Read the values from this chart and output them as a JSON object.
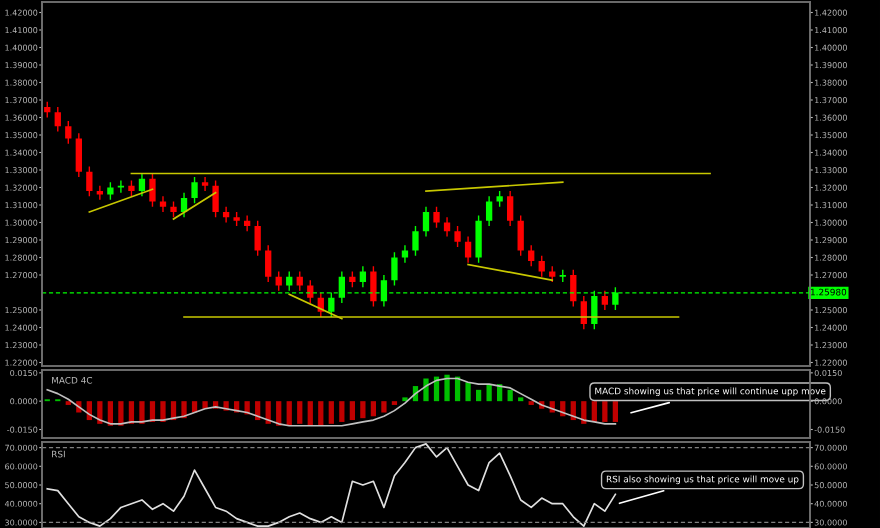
{
  "chart_data": [
    {
      "type": "candlestick",
      "tick_labels": "y",
      "categories": [
        null,
        null,
        null,
        null,
        null,
        null,
        null,
        null,
        null,
        null,
        null,
        null,
        null,
        null,
        null,
        null,
        null,
        null,
        null,
        null,
        null,
        null,
        null,
        null,
        null,
        null,
        null,
        null,
        null,
        null,
        null,
        null,
        null,
        null,
        null,
        null,
        null,
        null,
        null,
        null,
        null,
        null,
        null,
        null,
        null,
        null,
        null,
        null,
        null,
        null,
        null,
        null,
        null,
        null,
        null,
        null,
        null,
        null,
        null,
        null,
        null,
        null,
        null,
        null,
        null,
        null,
        null,
        null,
        null,
        null,
        null,
        null,
        null
      ],
      "ohlc": [
        [
          1.366,
          1.369,
          1.36,
          1.363
        ],
        [
          1.363,
          1.366,
          1.352,
          1.355
        ],
        [
          1.355,
          1.358,
          1.345,
          1.348
        ],
        [
          1.348,
          1.351,
          1.326,
          1.329
        ],
        [
          1.329,
          1.332,
          1.315,
          1.318
        ],
        [
          1.318,
          1.321,
          1.313,
          1.316
        ],
        [
          1.316,
          1.323,
          1.313,
          1.32
        ],
        [
          1.32,
          1.324,
          1.317,
          1.321
        ],
        [
          1.321,
          1.324,
          1.315,
          1.318
        ],
        [
          1.318,
          1.328,
          1.315,
          1.325
        ],
        [
          1.325,
          1.328,
          1.309,
          1.312
        ],
        [
          1.312,
          1.315,
          1.306,
          1.309
        ],
        [
          1.309,
          1.312,
          1.303,
          1.306
        ],
        [
          1.306,
          1.317,
          1.303,
          1.314
        ],
        [
          1.314,
          1.326,
          1.311,
          1.323
        ],
        [
          1.323,
          1.326,
          1.318,
          1.321
        ],
        [
          1.321,
          1.324,
          1.303,
          1.306
        ],
        [
          1.306,
          1.309,
          1.3,
          1.303
        ],
        [
          1.303,
          1.306,
          1.298,
          1.301
        ],
        [
          1.301,
          1.304,
          1.295,
          1.298
        ],
        [
          1.298,
          1.301,
          1.281,
          1.284
        ],
        [
          1.284,
          1.287,
          1.266,
          1.269
        ],
        [
          1.269,
          1.272,
          1.261,
          1.264
        ],
        [
          1.264,
          1.272,
          1.261,
          1.269
        ],
        [
          1.269,
          1.272,
          1.261,
          1.264
        ],
        [
          1.264,
          1.267,
          1.254,
          1.257
        ],
        [
          1.257,
          1.26,
          1.246,
          1.249
        ],
        [
          1.249,
          1.26,
          1.246,
          1.257
        ],
        [
          1.257,
          1.272,
          1.254,
          1.269
        ],
        [
          1.269,
          1.272,
          1.263,
          1.266
        ],
        [
          1.266,
          1.275,
          1.263,
          1.272
        ],
        [
          1.272,
          1.275,
          1.252,
          1.255
        ],
        [
          1.255,
          1.27,
          1.252,
          1.267
        ],
        [
          1.267,
          1.283,
          1.264,
          1.28
        ],
        [
          1.28,
          1.287,
          1.277,
          1.284
        ],
        [
          1.284,
          1.298,
          1.281,
          1.295
        ],
        [
          1.295,
          1.309,
          1.292,
          1.306
        ],
        [
          1.306,
          1.309,
          1.297,
          1.3
        ],
        [
          1.3,
          1.303,
          1.292,
          1.295
        ],
        [
          1.295,
          1.298,
          1.286,
          1.289
        ],
        [
          1.289,
          1.292,
          1.277,
          1.28
        ],
        [
          1.28,
          1.304,
          1.277,
          1.301
        ],
        [
          1.301,
          1.315,
          1.298,
          1.312
        ],
        [
          1.312,
          1.318,
          1.309,
          1.315
        ],
        [
          1.315,
          1.318,
          1.298,
          1.301
        ],
        [
          1.301,
          1.304,
          1.281,
          1.284
        ],
        [
          1.284,
          1.287,
          1.275,
          1.278
        ],
        [
          1.278,
          1.281,
          1.269,
          1.272
        ],
        [
          1.272,
          1.275,
          1.266,
          1.269
        ],
        [
          1.269,
          1.273,
          1.266,
          1.27
        ],
        [
          1.27,
          1.273,
          1.252,
          1.255
        ],
        [
          1.255,
          1.258,
          1.239,
          1.242
        ],
        [
          1.242,
          1.261,
          1.239,
          1.258
        ],
        [
          1.258,
          1.261,
          1.25,
          1.253
        ],
        [
          1.253,
          1.263,
          1.25,
          1.26
        ],
        null,
        null,
        null,
        null,
        null,
        null,
        null,
        null,
        null,
        null,
        null,
        null,
        null,
        null,
        null,
        null,
        null,
        null
      ],
      "colors": [
        "#ff0000",
        "#ff0000",
        "#ff0000",
        "#ff0000",
        "#ff0000",
        "#ff0000",
        "#00ff00",
        "#00ff00",
        "#ff0000",
        "#00ff00",
        "#ff0000",
        "#ff0000",
        "#ff0000",
        "#00ff00",
        "#00ff00",
        "#ff0000",
        "#ff0000",
        "#ff0000",
        "#ff0000",
        "#ff0000",
        "#ff0000",
        "#ff0000",
        "#ff0000",
        "#00ff00",
        "#ff0000",
        "#ff0000",
        "#ff0000",
        "#00ff00",
        "#00ff00",
        "#ff0000",
        "#00ff00",
        "#ff0000",
        "#00ff00",
        "#00ff00",
        "#00ff00",
        "#00ff00",
        "#00ff00",
        "#ff0000",
        "#ff0000",
        "#ff0000",
        "#ff0000",
        "#00ff00",
        "#00ff00",
        "#00ff00",
        "#ff0000",
        "#ff0000",
        "#ff0000",
        "#ff0000",
        "#ff0000",
        "#00ff00",
        "#ff0000",
        "#ff0000",
        "#00ff00",
        "#ff0000",
        "#00ff00",
        null,
        null,
        null,
        null,
        null,
        null,
        null,
        null,
        null,
        null,
        null,
        null,
        null,
        null,
        null,
        null,
        null,
        null
      ],
      "series": [
        {
          "type": "line",
          "color": "#c8c800",
          "values": [
            null,
            null,
            null,
            null,
            null,
            null,
            null,
            null,
            1.328,
            null,
            null,
            null,
            null,
            null,
            null,
            null,
            null,
            null,
            null,
            null,
            null,
            null,
            null,
            null,
            null,
            null,
            null,
            null,
            null,
            null,
            null,
            null,
            null,
            null,
            null,
            null,
            null,
            null,
            null,
            null,
            null,
            null,
            null,
            null,
            null,
            null,
            null,
            null,
            null,
            null,
            null,
            null,
            null,
            null,
            null,
            null,
            null,
            null,
            null,
            null,
            null,
            null,
            null,
            1.328,
            null,
            null,
            null,
            null,
            null,
            null,
            null,
            null,
            null
          ]
        },
        {
          "type": "line",
          "color": "#c8c800",
          "values": [
            null,
            null,
            null,
            null,
            null,
            null,
            null,
            null,
            null,
            null,
            null,
            null,
            null,
            1.246,
            null,
            null,
            null,
            null,
            null,
            null,
            null,
            null,
            null,
            null,
            null,
            null,
            null,
            null,
            null,
            null,
            null,
            null,
            null,
            null,
            null,
            null,
            null,
            null,
            null,
            null,
            null,
            null,
            null,
            null,
            null,
            null,
            null,
            null,
            null,
            null,
            null,
            null,
            null,
            null,
            null,
            null,
            null,
            null,
            null,
            null,
            1.246,
            null,
            null,
            null,
            null,
            null,
            null,
            null,
            null,
            null,
            null,
            null,
            null
          ]
        },
        {
          "type": "line",
          "color": "#c8c800",
          "values": [
            null,
            null,
            null,
            null,
            1.306,
            null,
            null,
            null,
            null,
            null,
            1.319,
            null,
            null,
            null,
            null,
            null,
            null,
            null,
            null,
            null,
            null,
            null,
            null,
            null,
            null,
            null,
            null,
            null,
            null,
            null,
            null,
            null,
            null,
            null,
            null,
            null,
            null,
            null,
            null,
            null,
            null,
            null,
            null,
            null,
            null,
            null,
            null,
            null,
            null,
            null,
            null,
            null,
            null,
            null,
            null,
            null,
            null,
            null,
            null,
            null,
            null,
            null,
            null,
            null,
            null,
            null,
            null,
            null,
            null,
            null,
            null,
            null,
            null
          ]
        },
        {
          "type": "line",
          "color": "#c8c800",
          "values": [
            null,
            null,
            null,
            null,
            null,
            null,
            null,
            null,
            null,
            null,
            null,
            null,
            1.302,
            null,
            null,
            null,
            1.317,
            null,
            null,
            null,
            null,
            null,
            null,
            null,
            null,
            null,
            null,
            null,
            null,
            null,
            null,
            null,
            null,
            null,
            null,
            null,
            null,
            null,
            null,
            null,
            null,
            null,
            null,
            null,
            null,
            null,
            null,
            null,
            null,
            null,
            null,
            null,
            null,
            null,
            null,
            null,
            null,
            null,
            null,
            null,
            null,
            null,
            null,
            null,
            null,
            null,
            null,
            null,
            null,
            null,
            null,
            null,
            null
          ]
        },
        {
          "type": "line",
          "color": "#c8c800",
          "values": [
            null,
            null,
            null,
            null,
            null,
            null,
            null,
            null,
            null,
            null,
            null,
            null,
            null,
            null,
            null,
            null,
            null,
            null,
            null,
            null,
            null,
            null,
            null,
            1.259,
            null,
            null,
            null,
            null,
            1.245,
            null,
            null,
            null,
            null,
            null,
            null,
            null,
            null,
            null,
            null,
            null,
            null,
            null,
            null,
            null,
            null,
            null,
            null,
            null,
            null,
            null,
            null,
            null,
            null,
            null,
            null,
            null,
            null,
            null,
            null,
            null,
            null,
            null,
            null,
            null,
            null,
            null,
            null,
            null,
            null,
            null,
            null,
            null,
            null
          ]
        },
        {
          "type": "line",
          "color": "#c8c800",
          "values": [
            null,
            null,
            null,
            null,
            null,
            null,
            null,
            null,
            null,
            null,
            null,
            null,
            null,
            null,
            null,
            null,
            null,
            null,
            null,
            null,
            null,
            null,
            null,
            null,
            null,
            null,
            null,
            null,
            null,
            null,
            null,
            null,
            null,
            null,
            null,
            null,
            1.318,
            null,
            null,
            null,
            null,
            null,
            null,
            null,
            null,
            null,
            null,
            null,
            null,
            1.323,
            null,
            null,
            null,
            null,
            null,
            null,
            null,
            null,
            null,
            null,
            null,
            null,
            null,
            null,
            null,
            null,
            null,
            null,
            null,
            null,
            null,
            null,
            null
          ]
        },
        {
          "type": "line",
          "color": "#c8c800",
          "values": [
            null,
            null,
            null,
            null,
            null,
            null,
            null,
            null,
            null,
            null,
            null,
            null,
            null,
            null,
            null,
            null,
            null,
            null,
            null,
            null,
            null,
            null,
            null,
            null,
            null,
            null,
            null,
            null,
            null,
            null,
            null,
            null,
            null,
            null,
            null,
            null,
            null,
            null,
            null,
            null,
            1.276,
            null,
            null,
            null,
            null,
            null,
            null,
            null,
            1.267,
            null,
            null,
            null,
            null,
            null,
            null,
            null,
            null,
            null,
            null,
            null,
            null,
            null,
            null,
            null,
            null,
            null,
            null,
            null,
            null,
            null,
            null,
            null,
            null
          ]
        }
      ],
      "ylim": [
        1.218,
        1.426
      ],
      "yticks": [
        {
          "value": 1.42,
          "label": "1.42000"
        },
        {
          "value": 1.41,
          "label": "1.41000"
        },
        {
          "value": 1.4,
          "label": "1.40000"
        },
        {
          "value": 1.39,
          "label": "1.39000"
        },
        {
          "value": 1.38,
          "label": "1.38000"
        },
        {
          "value": 1.37,
          "label": "1.37000"
        },
        {
          "value": 1.36,
          "label": "1.36000"
        },
        {
          "value": 1.35,
          "label": "1.35000"
        },
        {
          "value": 1.34,
          "label": "1.34000"
        },
        {
          "value": 1.33,
          "label": "1.33000"
        },
        {
          "value": 1.32,
          "label": "1.32000"
        },
        {
          "value": 1.31,
          "label": "1.31000"
        },
        {
          "value": 1.3,
          "label": "1.30000"
        },
        {
          "value": 1.29,
          "label": "1.29000"
        },
        {
          "value": 1.28,
          "label": "1.28000"
        },
        {
          "value": 1.27,
          "label": "1.27000"
        },
        {
          "value": 1.25,
          "label": "1.25000"
        },
        {
          "value": 1.24,
          "label": "1.24000"
        },
        {
          "value": 1.23,
          "label": "1.23000"
        },
        {
          "value": 1.22,
          "label": "1.22000"
        }
      ],
      "y2lim": [
        1.218,
        1.426
      ],
      "y2ticks": [
        {
          "value": 1.42,
          "label": "1.42000"
        },
        {
          "value": 1.41,
          "label": "1.41000"
        },
        {
          "value": 1.4,
          "label": "1.40000"
        },
        {
          "value": 1.39,
          "label": "1.39000"
        },
        {
          "value": 1.38,
          "label": "1.38000"
        },
        {
          "value": 1.37,
          "label": "1.37000"
        },
        {
          "value": 1.36,
          "label": "1.36000"
        },
        {
          "value": 1.35,
          "label": "1.35000"
        },
        {
          "value": 1.34,
          "label": "1.34000"
        },
        {
          "value": 1.33,
          "label": "1.33000"
        },
        {
          "value": 1.32,
          "label": "1.32000"
        },
        {
          "value": 1.31,
          "label": "1.31000"
        },
        {
          "value": 1.3,
          "label": "1.30000"
        },
        {
          "value": 1.29,
          "label": "1.29000"
        },
        {
          "value": 1.28,
          "label": "1.28000"
        },
        {
          "value": 1.27,
          "label": "1.27000"
        },
        {
          "value": 1.25,
          "label": "1.25000"
        },
        {
          "value": 1.24,
          "label": "1.24000"
        },
        {
          "value": 1.23,
          "label": "1.23000"
        },
        {
          "value": 1.22,
          "label": "1.22000"
        }
      ],
      "ref_lines": [
        {
          "axis": "y",
          "value": 1.2598,
          "label": "1.25980",
          "color": "#00ff00",
          "line_style": "dashed"
        }
      ]
    },
    {
      "type": "bar",
      "title": "MACD 4C",
      "tick_labels": "y",
      "categories": [
        null,
        null,
        null,
        null,
        null,
        null,
        null,
        null,
        null,
        null,
        null,
        null,
        null,
        null,
        null,
        null,
        null,
        null,
        null,
        null,
        null,
        null,
        null,
        null,
        null,
        null,
        null,
        null,
        null,
        null,
        null,
        null,
        null,
        null,
        null,
        null,
        null,
        null,
        null,
        null,
        null,
        null,
        null,
        null,
        null,
        null,
        null,
        null,
        null,
        null,
        null,
        null,
        null,
        null,
        null,
        null,
        null,
        null,
        null,
        null,
        null,
        null,
        null,
        null,
        null,
        null,
        null,
        null,
        null,
        null,
        null,
        null,
        null
      ],
      "series": [
        {
          "type": "bar",
          "values": [
            0.001,
            0.001,
            -0.002,
            -0.006,
            -0.01,
            -0.012,
            -0.013,
            -0.013,
            -0.012,
            -0.012,
            -0.011,
            -0.011,
            -0.01,
            -0.009,
            -0.006,
            -0.004,
            -0.004,
            -0.005,
            -0.006,
            -0.007,
            -0.01,
            -0.012,
            -0.013,
            -0.013,
            -0.012,
            -0.013,
            -0.013,
            -0.012,
            -0.011,
            -0.01,
            -0.009,
            -0.008,
            -0.006,
            -0.002,
            0.002,
            0.008,
            0.012,
            0.013,
            0.014,
            0.013,
            0.01,
            0.006,
            0.009,
            0.009,
            0.006,
            0.002,
            -0.002,
            -0.004,
            -0.006,
            -0.008,
            -0.01,
            -0.012,
            -0.011,
            -0.011,
            -0.011,
            null,
            null,
            null,
            null,
            null,
            null,
            null,
            null,
            null,
            null,
            null,
            null,
            null,
            null,
            null,
            null,
            null,
            null
          ],
          "colors": [
            "#00c000",
            "#00c000",
            "#c00000",
            "#c00000",
            "#c00000",
            "#c00000",
            "#c00000",
            "#c00000",
            "#c00000",
            "#c00000",
            "#c00000",
            "#c00000",
            "#c00000",
            "#c00000",
            "#c00000",
            "#c00000",
            "#c00000",
            "#c00000",
            "#c00000",
            "#c00000",
            "#c00000",
            "#c00000",
            "#c00000",
            "#c00000",
            "#c00000",
            "#c00000",
            "#c00000",
            "#c00000",
            "#c00000",
            "#c00000",
            "#c00000",
            "#c00000",
            "#c00000",
            "#c00000",
            "#00c000",
            "#00c000",
            "#00c000",
            "#00c000",
            "#00c000",
            "#00c000",
            "#00c000",
            "#00c000",
            "#00c000",
            "#00c000",
            "#00c000",
            "#00c000",
            "#c00000",
            "#c00000",
            "#c00000",
            "#c00000",
            "#c00000",
            "#c00000",
            "#c00000",
            "#c00000",
            "#c00000",
            null,
            null,
            null,
            null,
            null,
            null,
            null,
            null,
            null,
            null,
            null,
            null,
            null,
            null,
            null,
            null,
            null,
            null
          ]
        },
        {
          "type": "line",
          "color": "#c0c0c0",
          "values": [
            0.006,
            0.004,
            0.001,
            -0.003,
            -0.007,
            -0.01,
            -0.012,
            -0.012,
            -0.011,
            -0.011,
            -0.01,
            -0.01,
            -0.009,
            -0.008,
            -0.006,
            -0.004,
            -0.003,
            -0.004,
            -0.005,
            -0.006,
            -0.008,
            -0.01,
            -0.012,
            -0.013,
            -0.013,
            -0.013,
            -0.013,
            -0.013,
            -0.013,
            -0.012,
            -0.011,
            -0.01,
            -0.008,
            -0.005,
            -0.001,
            0.004,
            0.008,
            0.011,
            0.012,
            0.012,
            0.01,
            0.009,
            0.009,
            0.008,
            0.007,
            0.004,
            0.001,
            -0.002,
            -0.004,
            -0.006,
            -0.008,
            -0.01,
            -0.011,
            -0.012,
            -0.012,
            null,
            null,
            null,
            null,
            null,
            null,
            null,
            null,
            null,
            null,
            null,
            null,
            null,
            null,
            null,
            null,
            null,
            null
          ]
        }
      ],
      "ylim": [
        -0.0195,
        0.0165
      ],
      "yticks": [
        {
          "value": 0.015,
          "label": "0.0150"
        },
        {
          "value": 0,
          "label": "0.0000"
        },
        {
          "value": -0.015,
          "label": "-0.0150"
        }
      ],
      "y2lim": [
        -0.0195,
        0.0165
      ],
      "y2ticks": [
        {
          "value": 0.015,
          "label": "0.0150"
        },
        {
          "value": 0,
          "label": "0.0000"
        },
        {
          "value": -0.015,
          "label": "-0.0150"
        }
      ],
      "annotations": [
        "MACD showing us that price will continue upp move"
      ]
    },
    {
      "type": "line",
      "title": "RSI",
      "tick_labels": "y",
      "categories": [
        null,
        null,
        null,
        null,
        null,
        null,
        null,
        null,
        null,
        null,
        null,
        null,
        null,
        null,
        null,
        null,
        null,
        null,
        null,
        null,
        null,
        null,
        null,
        null,
        null,
        null,
        null,
        null,
        null,
        null,
        null,
        null,
        null,
        null,
        null,
        null,
        null,
        null,
        null,
        null,
        null,
        null,
        null,
        null,
        null,
        null,
        null,
        null,
        null,
        null,
        null,
        null,
        null,
        null,
        null,
        null,
        null,
        null,
        null,
        null,
        null,
        null,
        null,
        null,
        null,
        null,
        null,
        null,
        null,
        null,
        null,
        null,
        null
      ],
      "series": [
        {
          "color": "#e0e0e0",
          "values": [
            48,
            47,
            40,
            33,
            30,
            28,
            32,
            38,
            40,
            42,
            37,
            40,
            36,
            44,
            58,
            48,
            38,
            36,
            32,
            30,
            28,
            28,
            30,
            33,
            35,
            32,
            30,
            33,
            30,
            52,
            50,
            52,
            38,
            55,
            62,
            70,
            72,
            65,
            70,
            60,
            50,
            47,
            62,
            67,
            55,
            42,
            38,
            43,
            40,
            40,
            33,
            28,
            40,
            36,
            45,
            null,
            null,
            null,
            null,
            null,
            null,
            null,
            null,
            null,
            null,
            null,
            null,
            null,
            null,
            null,
            null,
            null,
            null
          ]
        }
      ],
      "ylim": [
        27,
        73
      ],
      "yticks": [
        {
          "value": 70,
          "label": "70.0000"
        },
        {
          "value": 60,
          "label": "60.0000"
        },
        {
          "value": 50,
          "label": "50.0000"
        },
        {
          "value": 40,
          "label": "40.0000"
        },
        {
          "value": 30,
          "label": "30.0000"
        }
      ],
      "y2lim": [
        27,
        73
      ],
      "y2ticks": [
        {
          "value": 70,
          "label": "70.0000"
        },
        {
          "value": 60,
          "label": "60.0000"
        },
        {
          "value": 50,
          "label": "50.0000"
        },
        {
          "value": 40,
          "label": "40.0000"
        },
        {
          "value": 30,
          "label": "30.0000"
        }
      ],
      "ref_lines": [
        {
          "axis": "y",
          "value": 70,
          "color": "#808080",
          "line_style": "dashed"
        },
        {
          "axis": "y",
          "value": 30,
          "color": "#808080",
          "line_style": "dashed"
        }
      ],
      "annotations": [
        "RSI also showing us that price will move up"
      ]
    }
  ]
}
